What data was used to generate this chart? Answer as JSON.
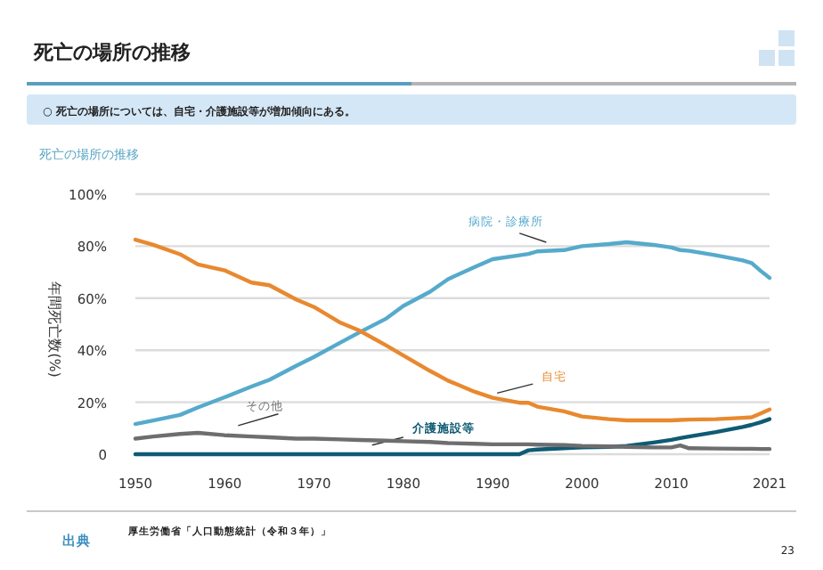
{
  "chart_data": {
    "type": "line",
    "title": "死亡の場所の推移",
    "subtitle": "○ 死亡の場所については、自宅・介護施設等が増加傾向にある。",
    "annotations": [
      "死亡の場所の推移",
      "出典",
      "厚生労働省「人口動態統計（令和３年）」",
      "23"
    ],
    "ylabel": "年間死亡数(%)",
    "x": [
      1950,
      1952,
      1955,
      1957,
      1960,
      1963,
      1965,
      1968,
      1970,
      1973,
      1975,
      1978,
      1980,
      1983,
      1985,
      1988,
      1990,
      1993,
      1994,
      1995,
      1998,
      2000,
      2003,
      2005,
      2008,
      2010,
      2011,
      2012,
      2015,
      2018,
      2019,
      2020,
      2021
    ],
    "series": [
      {
        "name": "病院・診療所",
        "color": "#56aacb",
        "values": [
          11.6,
          13,
          15.1,
          18,
          21.9,
          26,
          28.6,
          34,
          37.4,
          43,
          46.7,
          52,
          57,
          62.5,
          67.3,
          72,
          75,
          76.5,
          77,
          78,
          78.5,
          80,
          80.8,
          81.5,
          80.5,
          79.5,
          78.5,
          78.2,
          76.5,
          74.5,
          73.5,
          70.5,
          67.8
        ]
      },
      {
        "name": "自宅",
        "color": "#e8892f",
        "values": [
          82.5,
          80.5,
          76.9,
          73,
          70.7,
          66,
          65,
          59.5,
          56.6,
          50.5,
          47.7,
          42,
          38,
          32,
          28.3,
          24,
          21.7,
          19.8,
          19.8,
          18.3,
          16.5,
          14.5,
          13.5,
          13,
          13,
          13,
          13.2,
          13.3,
          13.5,
          14,
          14.2,
          15.7,
          17.2
        ]
      },
      {
        "name": "介護施設等",
        "color": "#0f5b73",
        "values": [
          0,
          0,
          0,
          0,
          0,
          0,
          0,
          0,
          0,
          0,
          0,
          0,
          0,
          0,
          0,
          0,
          0,
          0,
          1.5,
          1.8,
          2.3,
          2.6,
          2.8,
          3.2,
          4.5,
          5.5,
          6.2,
          6.8,
          8.5,
          10.5,
          11.3,
          12.3,
          13.5
        ]
      },
      {
        "name": "その他",
        "color": "#6e6e6e",
        "values": [
          6,
          6.8,
          7.8,
          8.2,
          7.3,
          6.8,
          6.5,
          6,
          6,
          5.7,
          5.5,
          5.2,
          5,
          4.7,
          4.3,
          4,
          3.8,
          3.8,
          3.8,
          3.7,
          3.5,
          3.2,
          3,
          2.8,
          2.6,
          2.6,
          3.4,
          2.3,
          2.2,
          2.1,
          2.1,
          2,
          2
        ]
      }
    ],
    "xlim": [
      1950,
      2021
    ],
    "xticks": [
      1950,
      1960,
      1970,
      1980,
      1990,
      2000,
      2010,
      2021
    ],
    "ylim": [
      0,
      100
    ],
    "yticks": [
      {
        "value": 0,
        "label": "0"
      },
      {
        "value": 20,
        "label": "20%"
      },
      {
        "value": 40,
        "label": "40%"
      },
      {
        "value": 60,
        "label": "60%"
      },
      {
        "value": 80,
        "label": "80%"
      },
      {
        "value": 100,
        "label": "100%"
      }
    ],
    "grid": "y",
    "marker": "none",
    "line_style": "solid"
  }
}
